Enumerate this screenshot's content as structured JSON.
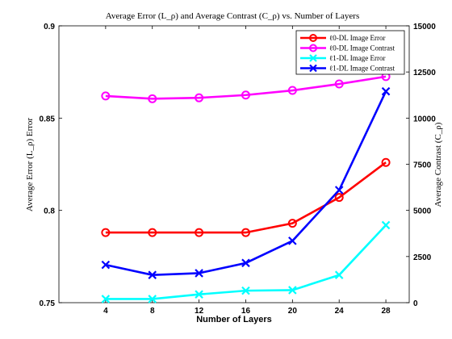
{
  "chart_data": {
    "type": "line",
    "title": "Average Error (L_ρ) and Average Contrast (C_ρ) vs. Number of Layers",
    "xlabel": "Number of Layers",
    "ylabel_left": "Average Error (L_ρ) Error",
    "ylabel_right": "Average Contrast (C_ρ)",
    "x": [
      4,
      8,
      12,
      16,
      20,
      24,
      28
    ],
    "xlim": [
      0,
      30
    ],
    "ylim_left": [
      0.75,
      0.9
    ],
    "ylim_right": [
      0,
      15000
    ],
    "yticks_left": [
      "0.75",
      "0.8",
      "0.85",
      "0.9"
    ],
    "yticks_right": [
      "0",
      "2500",
      "5000",
      "7500",
      "10000",
      "12500",
      "15000"
    ],
    "xticks": [
      "4",
      "8",
      "12",
      "16",
      "20",
      "24",
      "28"
    ],
    "grid": false,
    "legend_position": "top-right",
    "series": [
      {
        "name": "ℓ0-DL Image Error",
        "axis": "left",
        "color": "#ff0000",
        "marker": "circle",
        "values": [
          0.788,
          0.788,
          0.788,
          0.788,
          0.793,
          0.807,
          0.826
        ]
      },
      {
        "name": "ℓ0-DL Image Contrast",
        "axis": "right",
        "color": "#ff00ff",
        "marker": "circle",
        "values": [
          11200,
          11050,
          11100,
          11250,
          11500,
          11850,
          12250
        ]
      },
      {
        "name": "ℓ1-DL Image Error",
        "axis": "left",
        "color": "#00ffff",
        "marker": "x",
        "values": [
          0.752,
          0.752,
          0.7545,
          0.7565,
          0.7568,
          0.765,
          0.792
        ]
      },
      {
        "name": "ℓ1-DL Image Contrast",
        "axis": "right",
        "color": "#0000ff",
        "marker": "x",
        "values": [
          2050,
          1500,
          1600,
          2150,
          3350,
          6100,
          11450
        ]
      }
    ]
  }
}
